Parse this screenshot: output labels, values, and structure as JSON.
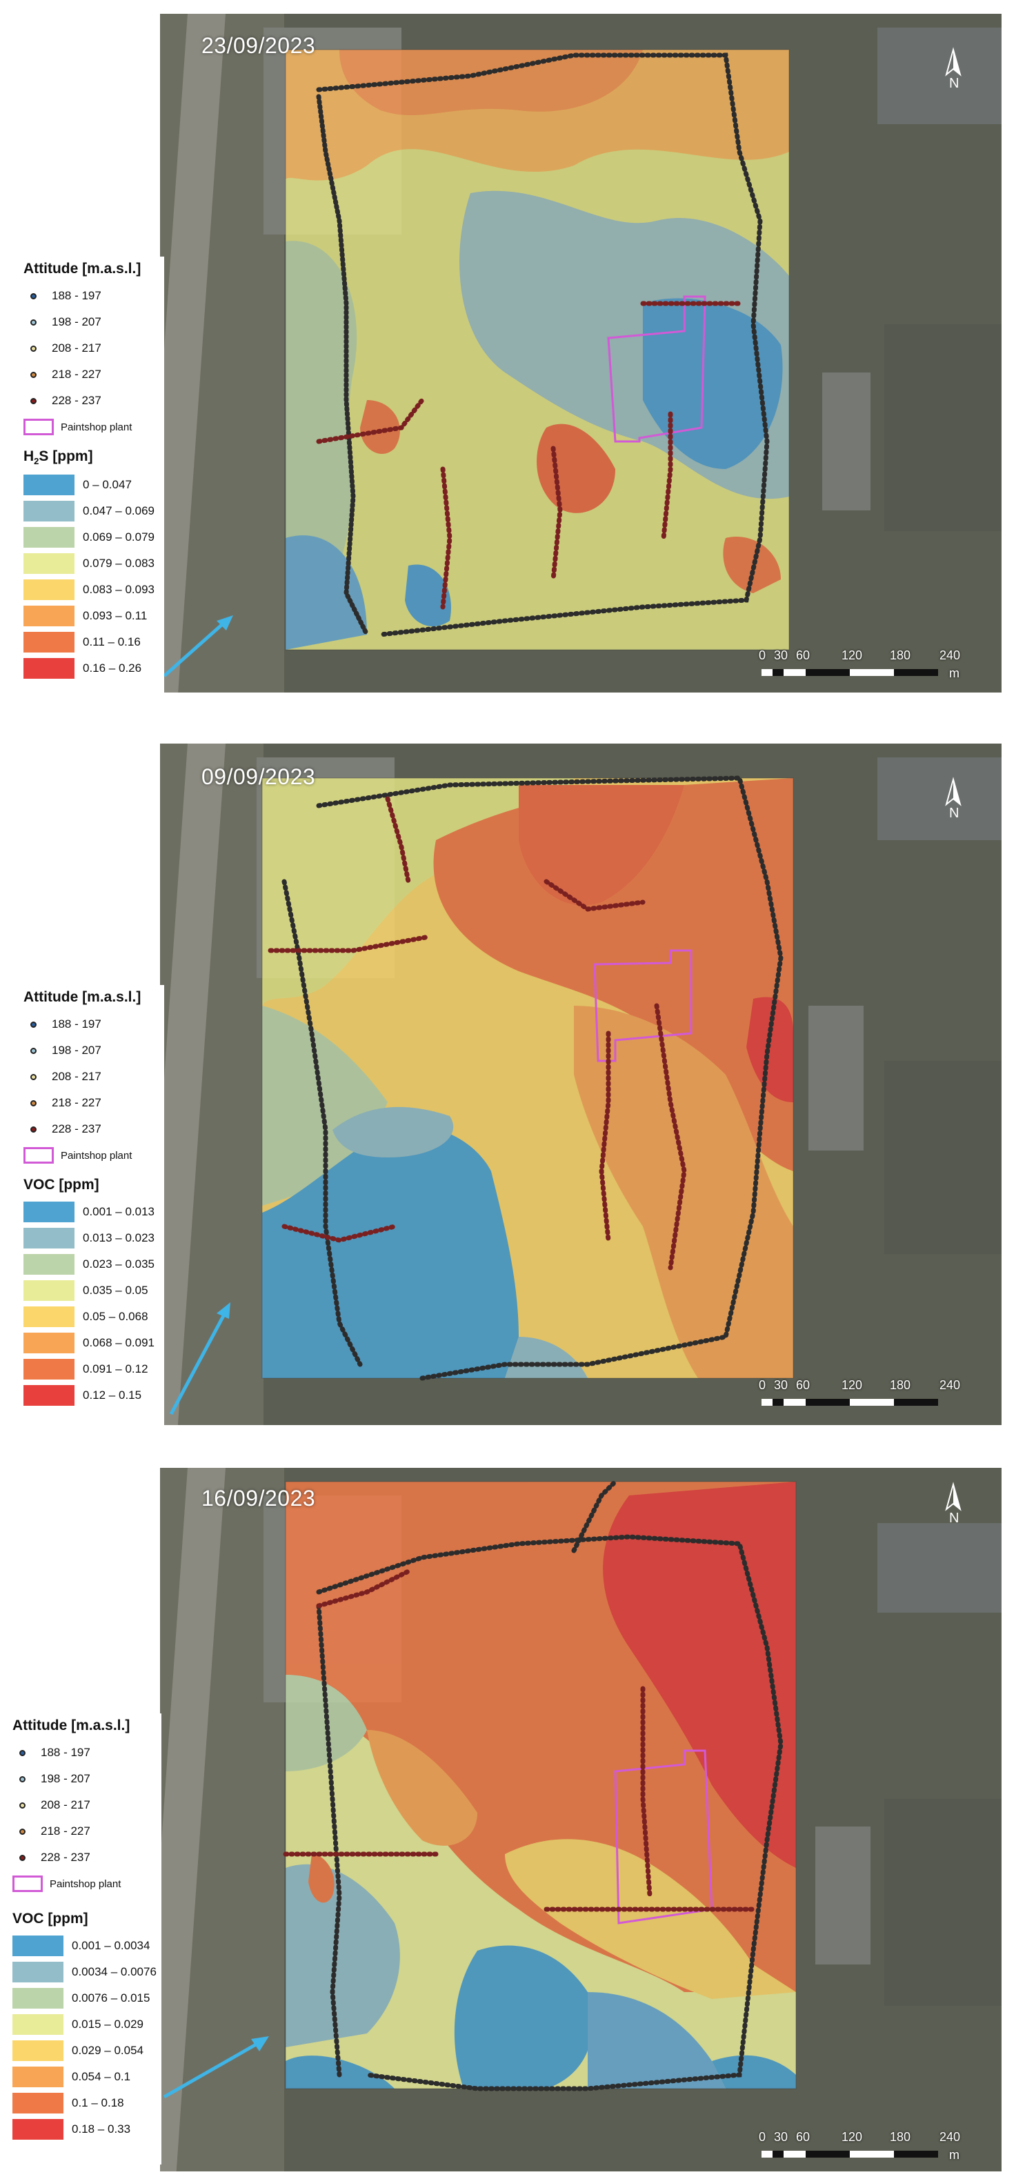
{
  "panels": [
    {
      "date": "23/09/2023",
      "north_label": "N",
      "attitude_title": "Attitude [m.a.s.l.]",
      "attitude_classes": [
        {
          "label": "188 - 197",
          "color": "#2b5f9e"
        },
        {
          "label": "198 - 207",
          "color": "#9fc7d8"
        },
        {
          "label": "208 - 217",
          "color": "#eee3a4"
        },
        {
          "label": "218 - 227",
          "color": "#d08a44"
        },
        {
          "label": "228 - 237",
          "color": "#8a1d1d"
        }
      ],
      "plant_label": "Paintshop plant",
      "pollutant_title_main": "H",
      "pollutant_title_sub": "2",
      "pollutant_title_rest": "S [ppm]",
      "pollutant_classes": [
        {
          "label": "0 – 0.047",
          "color": "#4fa3d1"
        },
        {
          "label": "0.047 – 0.069",
          "color": "#93bec9"
        },
        {
          "label": "0.069 – 0.079",
          "color": "#bcd4a9"
        },
        {
          "label": "0.079 – 0.083",
          "color": "#e8ec99"
        },
        {
          "label": "0.083 – 0.093",
          "color": "#fbd66b"
        },
        {
          "label": "0.093 – 0.11",
          "color": "#f8a656"
        },
        {
          "label": "0.11 – 0.16",
          "color": "#f07a47"
        },
        {
          "label": "0.16 – 0.26",
          "color": "#e8403c"
        }
      ],
      "scale_labels": [
        "0",
        "30",
        "60",
        "120",
        "180",
        "240"
      ],
      "scale_unit": "m"
    },
    {
      "date": "09/09/2023",
      "north_label": "N",
      "attitude_title": "Attitude [m.a.s.l.]",
      "attitude_classes": [
        {
          "label": "188 - 197",
          "color": "#2b5f9e"
        },
        {
          "label": "198 - 207",
          "color": "#9fc7d8"
        },
        {
          "label": "208 - 217",
          "color": "#eee3a4"
        },
        {
          "label": "218 - 227",
          "color": "#d08a44"
        },
        {
          "label": "228 - 237",
          "color": "#8a1d1d"
        }
      ],
      "plant_label": "Paintshop plant",
      "pollutant_title_main": "VOC [ppm]",
      "pollutant_title_sub": "",
      "pollutant_title_rest": "",
      "pollutant_classes": [
        {
          "label": "0.001 – 0.013",
          "color": "#4fa3d1"
        },
        {
          "label": "0.013 – 0.023",
          "color": "#93bec9"
        },
        {
          "label": "0.023 – 0.035",
          "color": "#bcd4a9"
        },
        {
          "label": "0.035 – 0.05",
          "color": "#e8ec99"
        },
        {
          "label": "0.05 – 0.068",
          "color": "#fbd66b"
        },
        {
          "label": "0.068 – 0.091",
          "color": "#f8a656"
        },
        {
          "label": "0.091 – 0.12",
          "color": "#f07a47"
        },
        {
          "label": "0.12 – 0.15",
          "color": "#e8403c"
        }
      ],
      "scale_labels": [
        "0",
        "30",
        "60",
        "120",
        "180",
        "240"
      ],
      "scale_unit": ""
    },
    {
      "date": "16/09/2023",
      "north_label": "N",
      "attitude_title": "Attitude [m.a.s.l.]",
      "attitude_classes": [
        {
          "label": "188 - 197",
          "color": "#2b5f9e"
        },
        {
          "label": "198 - 207",
          "color": "#9fc7d8"
        },
        {
          "label": "208 - 217",
          "color": "#eee3a4"
        },
        {
          "label": "218 - 227",
          "color": "#d08a44"
        },
        {
          "label": "228 - 237",
          "color": "#8a1d1d"
        }
      ],
      "plant_label": "Paintshop plant",
      "pollutant_title_main": "VOC [ppm]",
      "pollutant_title_sub": "",
      "pollutant_title_rest": "",
      "pollutant_classes": [
        {
          "label": "0.001 – 0.0034",
          "color": "#4fa3d1"
        },
        {
          "label": "0.0034 – 0.0076",
          "color": "#93bec9"
        },
        {
          "label": "0.0076 – 0.015",
          "color": "#bcd4a9"
        },
        {
          "label": "0.015 – 0.029",
          "color": "#e8ec99"
        },
        {
          "label": "0.029 – 0.054",
          "color": "#fbd66b"
        },
        {
          "label": "0.054 – 0.1",
          "color": "#f8a656"
        },
        {
          "label": "0.1 – 0.18",
          "color": "#f07a47"
        },
        {
          "label": "0.18 – 0.33",
          "color": "#e8403c"
        }
      ],
      "scale_labels": [
        "0",
        "30",
        "60",
        "120",
        "180",
        "240"
      ],
      "scale_unit": "m"
    }
  ],
  "colors": {
    "plant_outline": "#d25ad6",
    "arrow": "#3fb4e6"
  }
}
